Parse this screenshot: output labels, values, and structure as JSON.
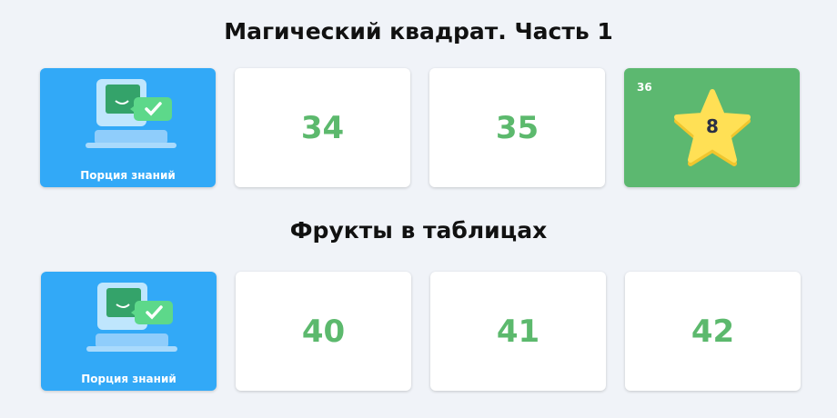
{
  "sections": [
    {
      "title": "Магический квадрат. Часть 1",
      "knowledge_label": "Порция знаний",
      "levels": [
        "34",
        "35"
      ],
      "completed": {
        "level": "36",
        "stars": "8"
      }
    },
    {
      "title": "Фрукты в таблицах",
      "knowledge_label": "Порция знаний",
      "levels": [
        "40",
        "41",
        "42"
      ]
    }
  ],
  "colors": {
    "accent_blue": "#32a9f7",
    "accent_green": "#5cb870",
    "star": "#ffe055"
  }
}
